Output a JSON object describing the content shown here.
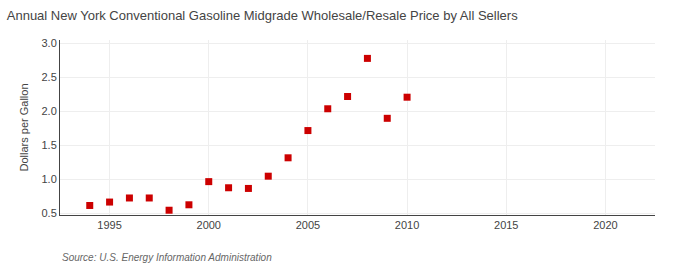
{
  "chart_data": {
    "type": "scatter",
    "title": "Annual New York Conventional Gasoline Midgrade Wholesale/Resale Price by All Sellers",
    "ylabel": "Dollars per Gallon",
    "annotations": [
      "Source: U.S. Energy Information Administration"
    ],
    "x": [
      1994,
      1995,
      1996,
      1997,
      1998,
      1999,
      2000,
      2001,
      2002,
      2003,
      2004,
      2005,
      2006,
      2007,
      2008,
      2009,
      2010
    ],
    "values": [
      0.62,
      0.67,
      0.73,
      0.73,
      0.55,
      0.63,
      0.97,
      0.88,
      0.87,
      1.05,
      1.32,
      1.72,
      2.04,
      2.22,
      2.78,
      1.9,
      2.21
    ],
    "color": "#cc0000",
    "marker": "square",
    "xlim": [
      1992.5,
      2022.5
    ],
    "ylim": [
      0.48,
      3.05
    ],
    "xticks": [
      1995,
      2000,
      2005,
      2010,
      2015,
      2020
    ],
    "yticks": [
      0.5,
      {
        "value": 1.0,
        "label": "1.0"
      },
      1.5,
      {
        "value": 2.0,
        "label": "2.0"
      },
      2.5,
      {
        "value": 3.0,
        "label": "3.0"
      }
    ],
    "grid": true
  }
}
